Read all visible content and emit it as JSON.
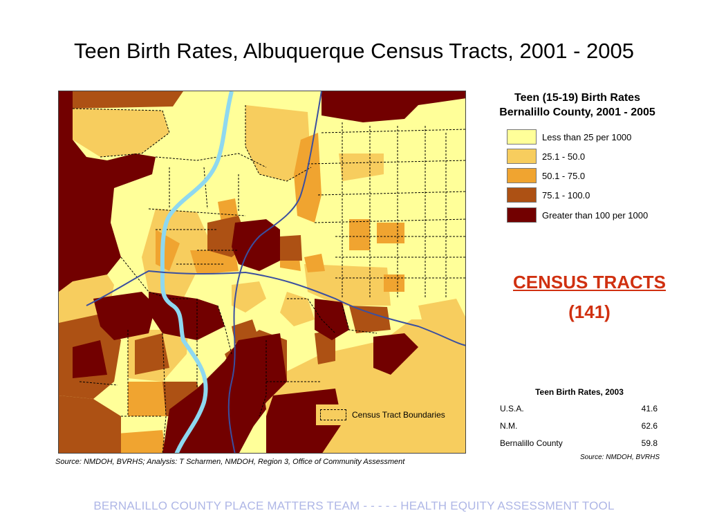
{
  "title": "Teen Birth Rates, Albuquerque Census Tracts, 2001 - 2005",
  "legend": {
    "title_line1": "Teen (15-19) Birth Rates",
    "title_line2": "Bernalillo County, 2001 - 2005",
    "classes": [
      {
        "label": "Less than 25 per 1000",
        "color": "#FFFF99"
      },
      {
        "label": "25.1 - 50.0",
        "color": "#F7CD5E"
      },
      {
        "label": "50.1 - 75.0",
        "color": "#F0A430"
      },
      {
        "label": "75.1 - 100.0",
        "color": "#AD5114"
      },
      {
        "label": "Greater than 100 per 1000",
        "color": "#720000"
      }
    ]
  },
  "map": {
    "boundary_legend_label": "Census Tract Boundaries",
    "source": "Source: NMDOH, BVRHS; Analysis: T Scharmen, NMDOH, Region 3, Office of Community Assessment",
    "colors": {
      "river": "#8ED8F0",
      "highway": "#3A4FA0"
    }
  },
  "census": {
    "heading": "CENSUS TRACTS",
    "count": "(141)"
  },
  "rates_table": {
    "title": "Teen Birth Rates, 2003",
    "rows": [
      {
        "place": "U.S.A.",
        "rate": "41.6"
      },
      {
        "place": "N.M.",
        "rate": "62.6"
      },
      {
        "place": "Bernalillo County",
        "rate": "59.8"
      }
    ],
    "source": "Source: NMDOH, BVRHS"
  },
  "footer": "BERNALILLO COUNTY PLACE MATTERS TEAM  -  -  -  -  -  HEALTH EQUITY ASSESSMENT TOOL"
}
